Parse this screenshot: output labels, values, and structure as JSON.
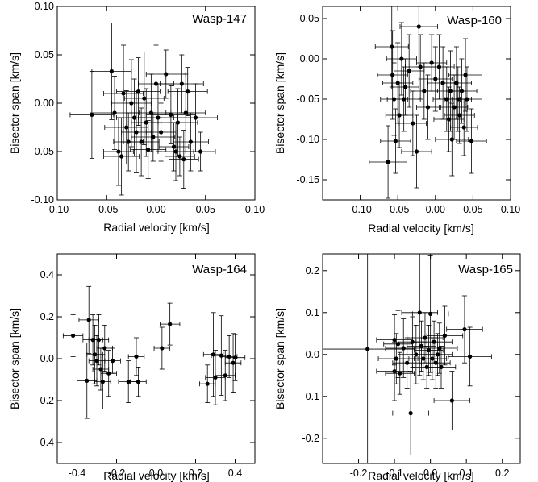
{
  "chart_data": [
    {
      "type": "scatter",
      "title": "Wasp-147",
      "xlabel": "Radial velocity [km/s]",
      "ylabel": "Bisector span [km/s]",
      "xlim": [
        -0.1,
        0.1
      ],
      "ylim": [
        -0.1,
        0.1
      ],
      "xticks": [
        -0.1,
        -0.05,
        0.0,
        0.05,
        0.1
      ],
      "yticks": [
        -0.1,
        -0.05,
        0.0,
        0.05,
        0.1
      ],
      "xticklabels": [
        "-0.10",
        "-0.05",
        "0.00",
        "0.05",
        "0.10"
      ],
      "yticklabels": [
        "-0.10",
        "-0.05",
        "0.00",
        "0.05",
        "0.10"
      ],
      "points": [
        {
          "x": -0.065,
          "y": -0.012,
          "xerr": 0.022,
          "yerr": 0.045
        },
        {
          "x": -0.045,
          "y": 0.033,
          "xerr": 0.02,
          "yerr": 0.05
        },
        {
          "x": -0.042,
          "y": -0.01,
          "xerr": 0.025,
          "yerr": 0.038
        },
        {
          "x": -0.038,
          "y": -0.05,
          "xerr": 0.015,
          "yerr": 0.035
        },
        {
          "x": -0.035,
          "y": -0.055,
          "xerr": 0.018,
          "yerr": 0.04
        },
        {
          "x": -0.033,
          "y": 0.01,
          "xerr": 0.02,
          "yerr": 0.05
        },
        {
          "x": -0.03,
          "y": -0.025,
          "xerr": 0.022,
          "yerr": 0.038
        },
        {
          "x": -0.028,
          "y": -0.04,
          "xerr": 0.015,
          "yerr": 0.03
        },
        {
          "x": -0.025,
          "y": 0.0,
          "xerr": 0.02,
          "yerr": 0.045
        },
        {
          "x": -0.022,
          "y": -0.015,
          "xerr": 0.018,
          "yerr": 0.04
        },
        {
          "x": -0.02,
          "y": -0.03,
          "xerr": 0.015,
          "yerr": 0.042
        },
        {
          "x": -0.018,
          "y": 0.012,
          "xerr": 0.022,
          "yerr": 0.035
        },
        {
          "x": -0.015,
          "y": -0.04,
          "xerr": 0.018,
          "yerr": 0.035
        },
        {
          "x": -0.012,
          "y": 0.005,
          "xerr": 0.02,
          "yerr": 0.048
        },
        {
          "x": -0.01,
          "y": -0.02,
          "xerr": 0.015,
          "yerr": 0.035
        },
        {
          "x": -0.008,
          "y": -0.048,
          "xerr": 0.018,
          "yerr": 0.03
        },
        {
          "x": -0.005,
          "y": -0.01,
          "xerr": 0.02,
          "yerr": 0.04
        },
        {
          "x": -0.003,
          "y": -0.035,
          "xerr": 0.022,
          "yerr": 0.025
        },
        {
          "x": 0.0,
          "y": 0.02,
          "xerr": 0.018,
          "yerr": 0.04
        },
        {
          "x": 0.002,
          "y": -0.015,
          "xerr": 0.02,
          "yerr": 0.035
        },
        {
          "x": 0.005,
          "y": -0.03,
          "xerr": 0.015,
          "yerr": 0.03
        },
        {
          "x": 0.01,
          "y": 0.03,
          "xerr": 0.02,
          "yerr": 0.025
        },
        {
          "x": 0.015,
          "y": -0.012,
          "xerr": 0.025,
          "yerr": 0.03
        },
        {
          "x": 0.018,
          "y": -0.045,
          "xerr": 0.015,
          "yerr": 0.025
        },
        {
          "x": 0.02,
          "y": -0.05,
          "xerr": 0.018,
          "yerr": 0.03
        },
        {
          "x": 0.022,
          "y": -0.02,
          "xerr": 0.02,
          "yerr": 0.035
        },
        {
          "x": 0.024,
          "y": -0.055,
          "xerr": 0.015,
          "yerr": 0.02
        },
        {
          "x": 0.026,
          "y": 0.02,
          "xerr": 0.022,
          "yerr": 0.03
        },
        {
          "x": 0.028,
          "y": -0.058,
          "xerr": 0.015,
          "yerr": 0.03
        },
        {
          "x": 0.03,
          "y": -0.01,
          "xerr": 0.02,
          "yerr": 0.04
        },
        {
          "x": 0.032,
          "y": 0.012,
          "xerr": 0.02,
          "yerr": 0.025
        },
        {
          "x": 0.035,
          "y": -0.04,
          "xerr": 0.018,
          "yerr": 0.03
        },
        {
          "x": 0.04,
          "y": -0.015,
          "xerr": 0.022,
          "yerr": 0.035
        },
        {
          "x": 0.045,
          "y": -0.05,
          "xerr": 0.015,
          "yerr": 0.02
        }
      ]
    },
    {
      "type": "scatter",
      "title": "Wasp-160",
      "xlabel": "Radial velocity [km/s]",
      "ylabel": "Bisector span [km/s]",
      "xlim": [
        -0.15,
        0.1
      ],
      "ylim": [
        -0.175,
        0.065
      ],
      "xticks": [
        -0.1,
        -0.05,
        0.0,
        0.05,
        0.1
      ],
      "yticks": [
        -0.15,
        -0.1,
        -0.05,
        0.0,
        0.05
      ],
      "xticklabels": [
        "-0.10",
        "-0.05",
        "0.00",
        "0.05",
        "0.10"
      ],
      "yticklabels": [
        "-0.15",
        "-0.10",
        "-0.05",
        "0.00",
        "0.05"
      ],
      "points": [
        {
          "x": -0.063,
          "y": -0.128,
          "xerr": 0.025,
          "yerr": 0.045
        },
        {
          "x": -0.058,
          "y": 0.015,
          "xerr": 0.022,
          "yerr": 0.05
        },
        {
          "x": -0.057,
          "y": -0.02,
          "xerr": 0.02,
          "yerr": 0.055
        },
        {
          "x": -0.055,
          "y": -0.05,
          "xerr": 0.018,
          "yerr": 0.045
        },
        {
          "x": -0.053,
          "y": -0.102,
          "xerr": 0.02,
          "yerr": 0.04
        },
        {
          "x": -0.05,
          "y": -0.03,
          "xerr": 0.02,
          "yerr": 0.05
        },
        {
          "x": -0.048,
          "y": -0.07,
          "xerr": 0.018,
          "yerr": 0.04
        },
        {
          "x": -0.045,
          "y": 0.0,
          "xerr": 0.02,
          "yerr": 0.045
        },
        {
          "x": -0.042,
          "y": -0.05,
          "xerr": 0.022,
          "yerr": 0.04
        },
        {
          "x": -0.04,
          "y": -0.035,
          "xerr": 0.018,
          "yerr": 0.035
        },
        {
          "x": -0.035,
          "y": -0.015,
          "xerr": 0.02,
          "yerr": 0.045
        },
        {
          "x": -0.03,
          "y": -0.08,
          "xerr": 0.018,
          "yerr": 0.04
        },
        {
          "x": -0.025,
          "y": -0.115,
          "xerr": 0.02,
          "yerr": 0.045
        },
        {
          "x": -0.022,
          "y": 0.04,
          "xerr": 0.025,
          "yerr": 0.05
        },
        {
          "x": -0.02,
          "y": -0.01,
          "xerr": 0.02,
          "yerr": 0.04
        },
        {
          "x": -0.015,
          "y": -0.04,
          "xerr": 0.018,
          "yerr": 0.035
        },
        {
          "x": -0.01,
          "y": -0.06,
          "xerr": 0.015,
          "yerr": 0.04
        },
        {
          "x": -0.005,
          "y": -0.005,
          "xerr": 0.02,
          "yerr": 0.035
        },
        {
          "x": 0.0,
          "y": -0.025,
          "xerr": 0.022,
          "yerr": 0.04
        },
        {
          "x": 0.005,
          "y": -0.01,
          "xerr": 0.02,
          "yerr": 0.04
        },
        {
          "x": 0.01,
          "y": -0.03,
          "xerr": 0.02,
          "yerr": 0.045
        },
        {
          "x": 0.015,
          "y": -0.05,
          "xerr": 0.018,
          "yerr": 0.04
        },
        {
          "x": 0.018,
          "y": -0.075,
          "xerr": 0.02,
          "yerr": 0.04
        },
        {
          "x": 0.02,
          "y": -0.04,
          "xerr": 0.02,
          "yerr": 0.05
        },
        {
          "x": 0.022,
          "y": -0.1,
          "xerr": 0.022,
          "yerr": 0.045
        },
        {
          "x": 0.025,
          "y": -0.06,
          "xerr": 0.018,
          "yerr": 0.04
        },
        {
          "x": 0.028,
          "y": -0.03,
          "xerr": 0.02,
          "yerr": 0.045
        },
        {
          "x": 0.03,
          "y": -0.05,
          "xerr": 0.018,
          "yerr": 0.04
        },
        {
          "x": 0.032,
          "y": -0.07,
          "xerr": 0.02,
          "yerr": 0.035
        },
        {
          "x": 0.035,
          "y": -0.04,
          "xerr": 0.02,
          "yerr": 0.04
        },
        {
          "x": 0.038,
          "y": -0.085,
          "xerr": 0.018,
          "yerr": 0.035
        },
        {
          "x": 0.04,
          "y": -0.02,
          "xerr": 0.022,
          "yerr": 0.045
        },
        {
          "x": 0.042,
          "y": -0.05,
          "xerr": 0.02,
          "yerr": 0.04
        },
        {
          "x": 0.048,
          "y": -0.102,
          "xerr": 0.02,
          "yerr": 0.04
        }
      ]
    },
    {
      "type": "scatter",
      "title": "Wasp-164",
      "xlabel": "Radial velocity [km/s]",
      "ylabel": "Bisector span [km/s]",
      "xlim": [
        -0.5,
        0.5
      ],
      "ylim": [
        -0.5,
        0.5
      ],
      "xticks": [
        -0.4,
        -0.2,
        0.0,
        0.2,
        0.4
      ],
      "yticks": [
        -0.4,
        -0.2,
        0.0,
        0.2,
        0.4
      ],
      "xticklabels": [
        "-0.4",
        "-0.2",
        "0.0",
        "0.2",
        "0.4"
      ],
      "yticklabels": [
        "-0.4",
        "-0.2",
        "0.0",
        "0.2",
        "0.4"
      ],
      "points": [
        {
          "x": -0.42,
          "y": 0.11,
          "xerr": 0.05,
          "yerr": 0.1
        },
        {
          "x": -0.35,
          "y": -0.105,
          "xerr": 0.05,
          "yerr": 0.18
        },
        {
          "x": -0.34,
          "y": 0.185,
          "xerr": 0.05,
          "yerr": 0.16
        },
        {
          "x": -0.32,
          "y": 0.09,
          "xerr": 0.05,
          "yerr": 0.12
        },
        {
          "x": -0.31,
          "y": 0.02,
          "xerr": 0.04,
          "yerr": 0.14
        },
        {
          "x": -0.3,
          "y": -0.01,
          "xerr": 0.04,
          "yerr": 0.12
        },
        {
          "x": -0.29,
          "y": 0.09,
          "xerr": 0.05,
          "yerr": 0.12
        },
        {
          "x": -0.28,
          "y": -0.05,
          "xerr": 0.04,
          "yerr": 0.1
        },
        {
          "x": -0.27,
          "y": -0.11,
          "xerr": 0.04,
          "yerr": 0.13
        },
        {
          "x": -0.26,
          "y": 0.05,
          "xerr": 0.04,
          "yerr": 0.11
        },
        {
          "x": -0.24,
          "y": -0.07,
          "xerr": 0.04,
          "yerr": 0.11
        },
        {
          "x": -0.22,
          "y": -0.01,
          "xerr": 0.04,
          "yerr": 0.06
        },
        {
          "x": -0.14,
          "y": -0.11,
          "xerr": 0.05,
          "yerr": 0.1
        },
        {
          "x": -0.1,
          "y": 0.01,
          "xerr": 0.04,
          "yerr": 0.09
        },
        {
          "x": -0.09,
          "y": -0.11,
          "xerr": 0.04,
          "yerr": 0.07
        },
        {
          "x": 0.03,
          "y": 0.05,
          "xerr": 0.04,
          "yerr": 0.1
        },
        {
          "x": 0.07,
          "y": 0.165,
          "xerr": 0.05,
          "yerr": 0.1
        },
        {
          "x": 0.26,
          "y": -0.12,
          "xerr": 0.04,
          "yerr": 0.09
        },
        {
          "x": 0.29,
          "y": 0.02,
          "xerr": 0.05,
          "yerr": 0.2
        },
        {
          "x": 0.3,
          "y": -0.09,
          "xerr": 0.05,
          "yerr": 0.13
        },
        {
          "x": 0.33,
          "y": 0.015,
          "xerr": 0.05,
          "yerr": 0.19
        },
        {
          "x": 0.35,
          "y": -0.08,
          "xerr": 0.05,
          "yerr": 0.12
        },
        {
          "x": 0.37,
          "y": 0.01,
          "xerr": 0.04,
          "yerr": 0.1
        },
        {
          "x": 0.39,
          "y": -0.02,
          "xerr": 0.04,
          "yerr": 0.14
        },
        {
          "x": 0.4,
          "y": 0.005,
          "xerr": 0.05,
          "yerr": 0.11
        }
      ]
    },
    {
      "type": "scatter",
      "title": "Wasp-165",
      "xlabel": "Radial velocity [km/s]",
      "ylabel": "Bisector span [km/s]",
      "xlim": [
        -0.3,
        0.25
      ],
      "ylim": [
        -0.26,
        0.24
      ],
      "xticks": [
        -0.2,
        -0.1,
        0.0,
        0.1,
        0.2
      ],
      "yticks": [
        -0.2,
        -0.1,
        0.0,
        0.1,
        0.2
      ],
      "xticklabels": [
        "-0.2",
        "-0.1",
        "0.0",
        "0.1",
        "0.2"
      ],
      "yticklabels": [
        "-0.2",
        "-0.1",
        "0.0",
        "0.1",
        "0.2"
      ],
      "points": [
        {
          "x": -0.175,
          "y": 0.013,
          "xerr": 0.13,
          "yerr": 0.4
        },
        {
          "x": -0.1,
          "y": 0.035,
          "xerr": 0.05,
          "yerr": 0.06
        },
        {
          "x": -0.1,
          "y": -0.04,
          "xerr": 0.05,
          "yerr": 0.07
        },
        {
          "x": -0.095,
          "y": -0.01,
          "xerr": 0.05,
          "yerr": 0.06
        },
        {
          "x": -0.09,
          "y": 0.025,
          "xerr": 0.04,
          "yerr": 0.08
        },
        {
          "x": -0.085,
          "y": -0.045,
          "xerr": 0.04,
          "yerr": 0.05
        },
        {
          "x": -0.075,
          "y": 0.015,
          "xerr": 0.05,
          "yerr": 0.07
        },
        {
          "x": -0.065,
          "y": -0.02,
          "xerr": 0.04,
          "yerr": 0.06
        },
        {
          "x": -0.055,
          "y": -0.14,
          "xerr": 0.05,
          "yerr": 0.1
        },
        {
          "x": -0.05,
          "y": 0.03,
          "xerr": 0.04,
          "yerr": 0.06
        },
        {
          "x": -0.04,
          "y": 0.0,
          "xerr": 0.05,
          "yerr": 0.07
        },
        {
          "x": -0.03,
          "y": 0.1,
          "xerr": 0.05,
          "yerr": 0.15
        },
        {
          "x": -0.025,
          "y": 0.02,
          "xerr": 0.04,
          "yerr": 0.06
        },
        {
          "x": -0.02,
          "y": -0.01,
          "xerr": 0.04,
          "yerr": 0.05
        },
        {
          "x": -0.015,
          "y": 0.04,
          "xerr": 0.05,
          "yerr": 0.06
        },
        {
          "x": -0.01,
          "y": -0.03,
          "xerr": 0.04,
          "yerr": 0.05
        },
        {
          "x": -0.005,
          "y": 0.01,
          "xerr": 0.04,
          "yerr": 0.06
        },
        {
          "x": 0.0,
          "y": 0.097,
          "xerr": 0.05,
          "yerr": 0.14
        },
        {
          "x": 0.005,
          "y": -0.01,
          "xerr": 0.04,
          "yerr": 0.05
        },
        {
          "x": 0.01,
          "y": 0.03,
          "xerr": 0.05,
          "yerr": 0.05
        },
        {
          "x": 0.015,
          "y": -0.02,
          "xerr": 0.04,
          "yerr": 0.06
        },
        {
          "x": 0.02,
          "y": 0.0,
          "xerr": 0.04,
          "yerr": 0.05
        },
        {
          "x": 0.025,
          "y": 0.015,
          "xerr": 0.05,
          "yerr": 0.06
        },
        {
          "x": 0.03,
          "y": -0.03,
          "xerr": 0.04,
          "yerr": 0.05
        },
        {
          "x": 0.04,
          "y": 0.045,
          "xerr": 0.05,
          "yerr": 0.07
        },
        {
          "x": 0.06,
          "y": -0.11,
          "xerr": 0.05,
          "yerr": 0.07
        },
        {
          "x": 0.095,
          "y": 0.06,
          "xerr": 0.05,
          "yerr": 0.08
        },
        {
          "x": 0.11,
          "y": -0.005,
          "xerr": 0.06,
          "yerr": 0.07
        }
      ]
    }
  ]
}
